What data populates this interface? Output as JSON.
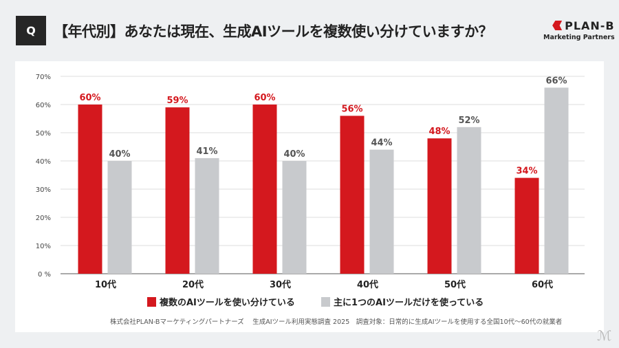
{
  "header": {
    "q_label": "Q",
    "title": "【年代別】あなたは現在、生成AIツールを複数使い分けていますか？"
  },
  "logo": {
    "name": "PLAN-B",
    "sub": "Marketing Partners"
  },
  "chart_data": {
    "type": "bar",
    "categories": [
      "10代",
      "20代",
      "30代",
      "40代",
      "50代",
      "60代"
    ],
    "series": [
      {
        "name": "複数のAIツールを使い分けている",
        "values": [
          60,
          59,
          60,
          56,
          48,
          34
        ],
        "color": "#d4181e",
        "label_color": "#d4181e"
      },
      {
        "name": "主に1つのAIツールだけを使っている",
        "values": [
          40,
          41,
          40,
          44,
          52,
          66
        ],
        "color": "#c8cacd",
        "label_color": "#555555"
      }
    ],
    "yticks": [
      "0 %",
      "10%",
      "20%",
      "30%",
      "40%",
      "50%",
      "60%",
      "70%"
    ],
    "ylim": [
      0,
      70
    ],
    "grid": true,
    "legend": "bottom"
  },
  "footer": "株式会社PLAN-Bマーケティングパートナーズ　 生成AIツール利用実態調査 2025　調査対象：日常的に生成AIツールを使用する全国10代〜60代の就業者"
}
